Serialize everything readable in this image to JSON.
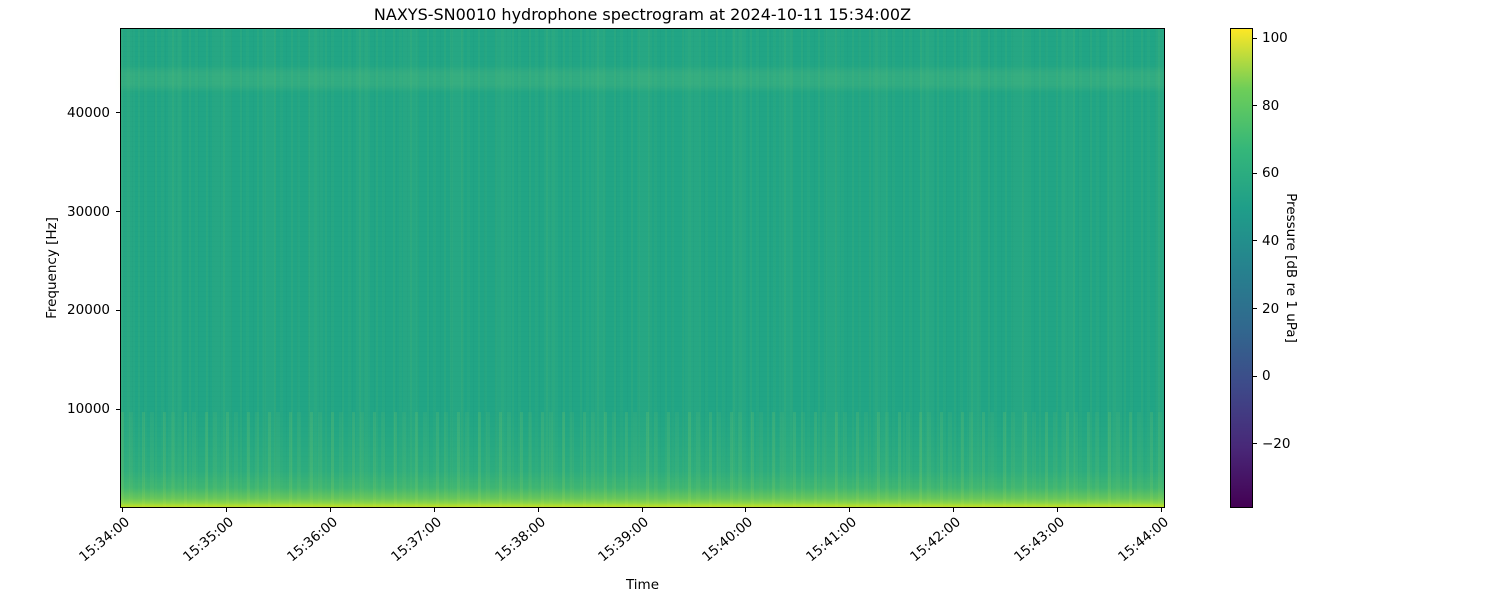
{
  "chart_data": {
    "type": "heatmap",
    "subtype": "spectrogram",
    "title": "NAXYS-SN0010 hydrophone spectrogram at 2024-10-11 15:34:00Z",
    "xlabel": "Time",
    "ylabel": "Frequency [Hz]",
    "grid": false,
    "x_tick_labels": [
      "15:34:00",
      "15:35:00",
      "15:36:00",
      "15:37:00",
      "15:38:00",
      "15:39:00",
      "15:40:00",
      "15:41:00",
      "15:42:00",
      "15:43:00",
      "15:44:00"
    ],
    "x_tick_offsets_s": [
      0,
      60,
      120,
      180,
      240,
      300,
      360,
      420,
      480,
      540,
      600
    ],
    "xlim_offsets_s": [
      -1.5,
      602
    ],
    "y_ticks_hz": [
      10000,
      20000,
      30000,
      40000
    ],
    "y_tick_labels": [
      "10000",
      "20000",
      "30000",
      "40000"
    ],
    "ylim_hz": [
      0,
      48600
    ],
    "colorbar": {
      "label": "Pressure [dB re 1 uPa]",
      "ticks_db": [
        100,
        80,
        60,
        40,
        20,
        0,
        -20
      ],
      "tick_labels": [
        "100",
        "80",
        "60",
        "40",
        "20",
        "0",
        "−20"
      ],
      "clim_db": [
        -39,
        103
      ],
      "colormap": "viridis",
      "gradient_top_to_bottom": [
        "#fde725",
        "#6ece58",
        "#35b779",
        "#1f9e89",
        "#26828e",
        "#31688e",
        "#3e4989",
        "#482878",
        "#440154"
      ],
      "position": "right"
    },
    "content_summary": {
      "background_level_db": 50,
      "low_freq_band_below_hz": 2500,
      "low_freq_band_level_db": 65,
      "bottom_edge_level_db": 80,
      "faint_band_center_hz": 43500,
      "texture": "near-uniform teal field with faint vertical striations every few seconds, brighter green energy below ~8 kHz and a thin bright yellow-green band at the lowest frequencies"
    },
    "style_colors": {
      "hm_base": "#21a585",
      "hm_edge": "#b8de29",
      "hm_edge2": "#8bd646",
      "axis_color": "#000000",
      "background": "#ffffff"
    }
  }
}
